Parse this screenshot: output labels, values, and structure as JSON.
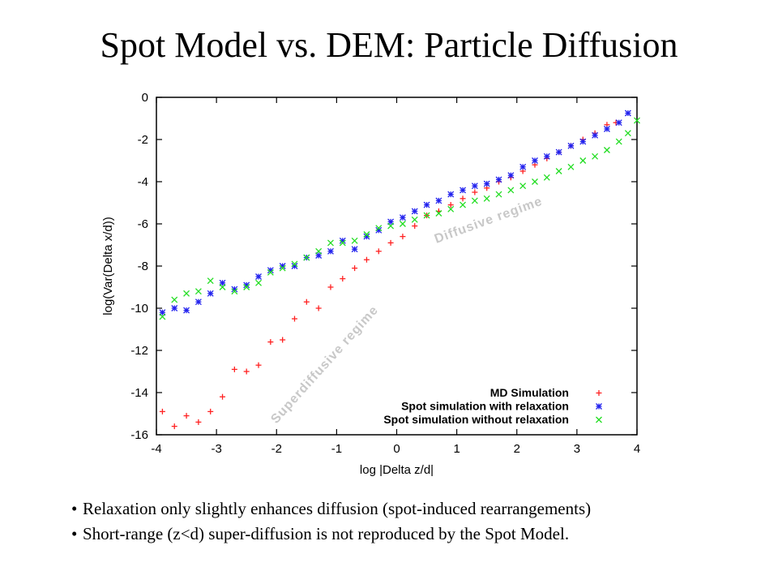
{
  "slide": {
    "title": "Spot Model vs. DEM: Particle Diffusion",
    "bullets": [
      "Relaxation only slightly enhances diffusion (spot-induced rearrangements)",
      "Short-range (z<d) super-diffusion is not reproduced by the Spot Model."
    ]
  },
  "chart_data": {
    "type": "scatter",
    "xlabel": "log |Delta z/d|",
    "ylabel": "log(Var(Delta x/d))",
    "xlim": [
      -4,
      4
    ],
    "ylim": [
      -16,
      0
    ],
    "xticks": [
      "-4",
      "-3",
      "-2",
      "-1",
      "0",
      "1",
      "2",
      "3",
      "4"
    ],
    "yticks": [
      "0",
      "-2",
      "-4",
      "-6",
      "-8",
      "-10",
      "-12",
      "-14",
      "-16"
    ],
    "grid": false,
    "legend_position": "bottom-right",
    "annotations": [
      {
        "text": "Diffusive regime",
        "x": 1.55,
        "y": -6.0,
        "angle": -20
      },
      {
        "text": "Superdiffusive regime",
        "x": -1.15,
        "y": -12.8,
        "angle": -48
      }
    ],
    "series": [
      {
        "name": "MD Simulation",
        "marker": "plus",
        "color": "#ff2222",
        "points": [
          [
            -3.9,
            -14.9
          ],
          [
            -3.7,
            -15.6
          ],
          [
            -3.5,
            -15.1
          ],
          [
            -3.3,
            -15.4
          ],
          [
            -3.1,
            -14.9
          ],
          [
            -2.9,
            -14.2
          ],
          [
            -2.7,
            -12.9
          ],
          [
            -2.5,
            -13.0
          ],
          [
            -2.3,
            -12.7
          ],
          [
            -2.1,
            -11.6
          ],
          [
            -1.9,
            -11.5
          ],
          [
            -1.7,
            -10.5
          ],
          [
            -1.5,
            -9.7
          ],
          [
            -1.3,
            -10.0
          ],
          [
            -1.1,
            -9.0
          ],
          [
            -0.9,
            -8.6
          ],
          [
            -0.7,
            -8.1
          ],
          [
            -0.5,
            -7.7
          ],
          [
            -0.3,
            -7.3
          ],
          [
            -0.1,
            -6.9
          ],
          [
            0.1,
            -6.6
          ],
          [
            0.3,
            -6.1
          ],
          [
            0.5,
            -5.6
          ],
          [
            0.7,
            -5.4
          ],
          [
            0.9,
            -5.1
          ],
          [
            1.1,
            -4.8
          ],
          [
            1.3,
            -4.5
          ],
          [
            1.5,
            -4.3
          ],
          [
            1.7,
            -4.0
          ],
          [
            1.9,
            -3.8
          ],
          [
            2.1,
            -3.5
          ],
          [
            2.3,
            -3.2
          ],
          [
            2.5,
            -2.9
          ],
          [
            2.7,
            -2.6
          ],
          [
            2.9,
            -2.3
          ],
          [
            3.1,
            -2.0
          ],
          [
            3.3,
            -1.7
          ],
          [
            3.5,
            -1.3
          ],
          [
            3.65,
            -1.2
          ]
        ]
      },
      {
        "name": "Spot simulation with relaxation",
        "marker": "star",
        "color": "#2222ee",
        "points": [
          [
            -3.9,
            -10.2
          ],
          [
            -3.7,
            -10.0
          ],
          [
            -3.5,
            -10.1
          ],
          [
            -3.3,
            -9.7
          ],
          [
            -3.1,
            -9.3
          ],
          [
            -2.9,
            -8.8
          ],
          [
            -2.7,
            -9.1
          ],
          [
            -2.5,
            -8.9
          ],
          [
            -2.3,
            -8.5
          ],
          [
            -2.1,
            -8.2
          ],
          [
            -1.9,
            -8.0
          ],
          [
            -1.7,
            -8.0
          ],
          [
            -1.5,
            -7.6
          ],
          [
            -1.3,
            -7.5
          ],
          [
            -1.1,
            -7.3
          ],
          [
            -0.9,
            -6.8
          ],
          [
            -0.7,
            -7.2
          ],
          [
            -0.5,
            -6.6
          ],
          [
            -0.3,
            -6.3
          ],
          [
            -0.1,
            -5.9
          ],
          [
            0.1,
            -5.7
          ],
          [
            0.3,
            -5.4
          ],
          [
            0.5,
            -5.1
          ],
          [
            0.7,
            -4.9
          ],
          [
            0.9,
            -4.6
          ],
          [
            1.1,
            -4.4
          ],
          [
            1.3,
            -4.2
          ],
          [
            1.5,
            -4.1
          ],
          [
            1.7,
            -3.9
          ],
          [
            1.9,
            -3.7
          ],
          [
            2.1,
            -3.3
          ],
          [
            2.3,
            -3.0
          ],
          [
            2.5,
            -2.8
          ],
          [
            2.7,
            -2.6
          ],
          [
            2.9,
            -2.3
          ],
          [
            3.1,
            -2.1
          ],
          [
            3.3,
            -1.8
          ],
          [
            3.5,
            -1.5
          ],
          [
            3.7,
            -1.2
          ],
          [
            3.85,
            -0.75
          ]
        ]
      },
      {
        "name": "Spot simulation without relaxation",
        "marker": "cross",
        "color": "#22dd22",
        "points": [
          [
            -3.9,
            -10.4
          ],
          [
            -3.7,
            -9.6
          ],
          [
            -3.5,
            -9.3
          ],
          [
            -3.3,
            -9.2
          ],
          [
            -3.1,
            -8.7
          ],
          [
            -2.9,
            -9.0
          ],
          [
            -2.7,
            -9.2
          ],
          [
            -2.5,
            -9.0
          ],
          [
            -2.3,
            -8.8
          ],
          [
            -2.1,
            -8.3
          ],
          [
            -1.9,
            -8.1
          ],
          [
            -1.7,
            -7.9
          ],
          [
            -1.5,
            -7.6
          ],
          [
            -1.3,
            -7.3
          ],
          [
            -1.1,
            -6.9
          ],
          [
            -0.9,
            -6.9
          ],
          [
            -0.7,
            -6.8
          ],
          [
            -0.5,
            -6.5
          ],
          [
            -0.3,
            -6.2
          ],
          [
            -0.1,
            -6.1
          ],
          [
            0.1,
            -6.0
          ],
          [
            0.3,
            -5.8
          ],
          [
            0.5,
            -5.6
          ],
          [
            0.7,
            -5.5
          ],
          [
            0.9,
            -5.3
          ],
          [
            1.1,
            -5.1
          ],
          [
            1.3,
            -4.9
          ],
          [
            1.5,
            -4.8
          ],
          [
            1.7,
            -4.6
          ],
          [
            1.9,
            -4.4
          ],
          [
            2.1,
            -4.2
          ],
          [
            2.3,
            -4.0
          ],
          [
            2.5,
            -3.8
          ],
          [
            2.7,
            -3.5
          ],
          [
            2.9,
            -3.3
          ],
          [
            3.1,
            -3.0
          ],
          [
            3.3,
            -2.8
          ],
          [
            3.5,
            -2.5
          ],
          [
            3.7,
            -2.1
          ],
          [
            3.85,
            -1.7
          ],
          [
            4.0,
            -1.1
          ]
        ]
      }
    ]
  }
}
